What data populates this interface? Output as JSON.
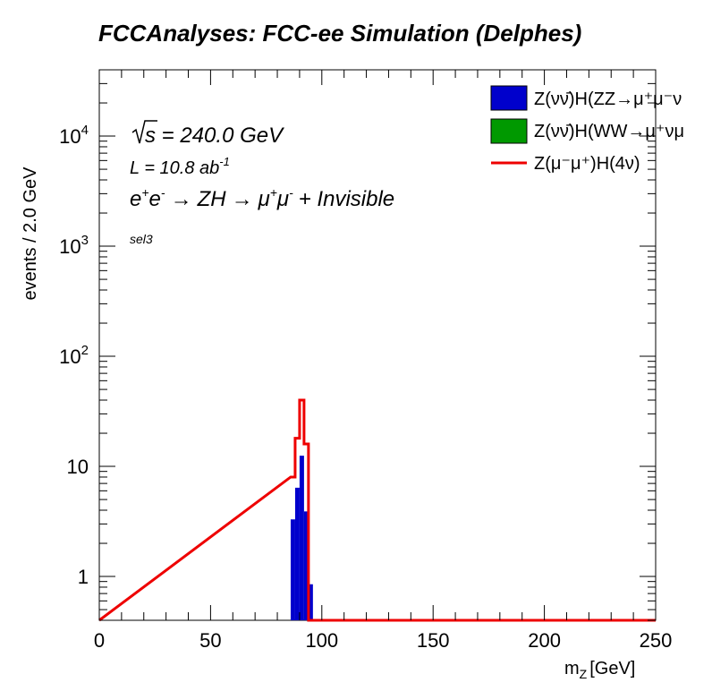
{
  "chart_data": {
    "type": "histogram",
    "title": "FCCAnalyses: FCC-ee Simulation (Delphes)",
    "xlabel": "m",
    "xlabel_sub": "Z",
    "xlabel_unit": "[GeV]",
    "ylabel": "events / 2.0 GeV",
    "xlim": [
      0,
      250
    ],
    "ylim": [
      0.4,
      40000
    ],
    "yscale": "log",
    "x_ticks": [
      0,
      50,
      100,
      150,
      200,
      250
    ],
    "y_ticks": [
      {
        "value": 1,
        "label": "1"
      },
      {
        "value": 10,
        "label": "10"
      },
      {
        "value": 100,
        "label": "10",
        "exp": "2"
      },
      {
        "value": 1000,
        "label": "10",
        "exp": "3"
      },
      {
        "value": 10000,
        "label": "10",
        "exp": "4"
      }
    ],
    "bin_width": 2.0,
    "series": [
      {
        "name": "Z(νν̄)H(ZZ→μ⁺μ⁻ν",
        "style": "filled",
        "color": "#0000cc",
        "bins": [
          {
            "x": 86,
            "y": 3.3
          },
          {
            "x": 88,
            "y": 6.4
          },
          {
            "x": 90,
            "y": 12.5
          },
          {
            "x": 92,
            "y": 3.9
          },
          {
            "x": 94,
            "y": 0.85
          }
        ]
      },
      {
        "name": "Z(νν̄)H(WW→μ⁺νμ",
        "style": "filled",
        "color": "#009900",
        "bins": []
      },
      {
        "name": "Z(μ⁻μ⁺)H(4ν)",
        "style": "line",
        "color": "#ee0000",
        "bins": [
          {
            "x": 86,
            "y": 8.0
          },
          {
            "x": 88,
            "y": 18.0
          },
          {
            "x": 90,
            "y": 40.0
          },
          {
            "x": 92,
            "y": 16.0
          }
        ]
      }
    ],
    "annotations": {
      "sqrt_s": "s",
      "energy": " = 240.0 GeV",
      "lumi_base": "L = 10.8 ab",
      "lumi_exp": "-1",
      "process": "ZH",
      "channel": "+ Invisible",
      "selection": "sel3"
    },
    "legend_position": "top-right"
  }
}
